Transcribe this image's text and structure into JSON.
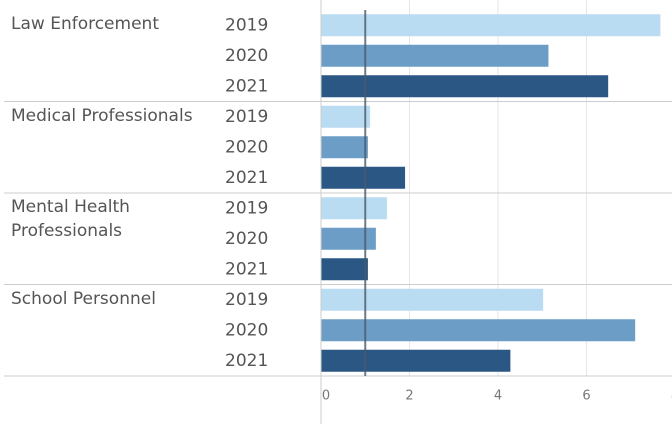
{
  "chart_data": {
    "type": "bar",
    "orientation": "horizontal",
    "categories": [
      "Law Enforcement",
      "Medical Professionals",
      "Mental Health Professionals",
      "School Personnel"
    ],
    "series": [
      {
        "name": "2019",
        "color": "#b9dcf2",
        "values": [
          7.67,
          1.11,
          1.49,
          5.02
        ]
      },
      {
        "name": "2020",
        "color": "#6b9dc7",
        "values": [
          5.14,
          1.06,
          1.24,
          7.1
        ]
      },
      {
        "name": "2021",
        "color": "#2a5783",
        "values": [
          6.49,
          1.9,
          1.06,
          4.28
        ]
      }
    ],
    "reference_line": 1,
    "xlim": [
      0,
      8
    ],
    "xticks": [
      0,
      2,
      4,
      6,
      8
    ],
    "grid": true
  }
}
